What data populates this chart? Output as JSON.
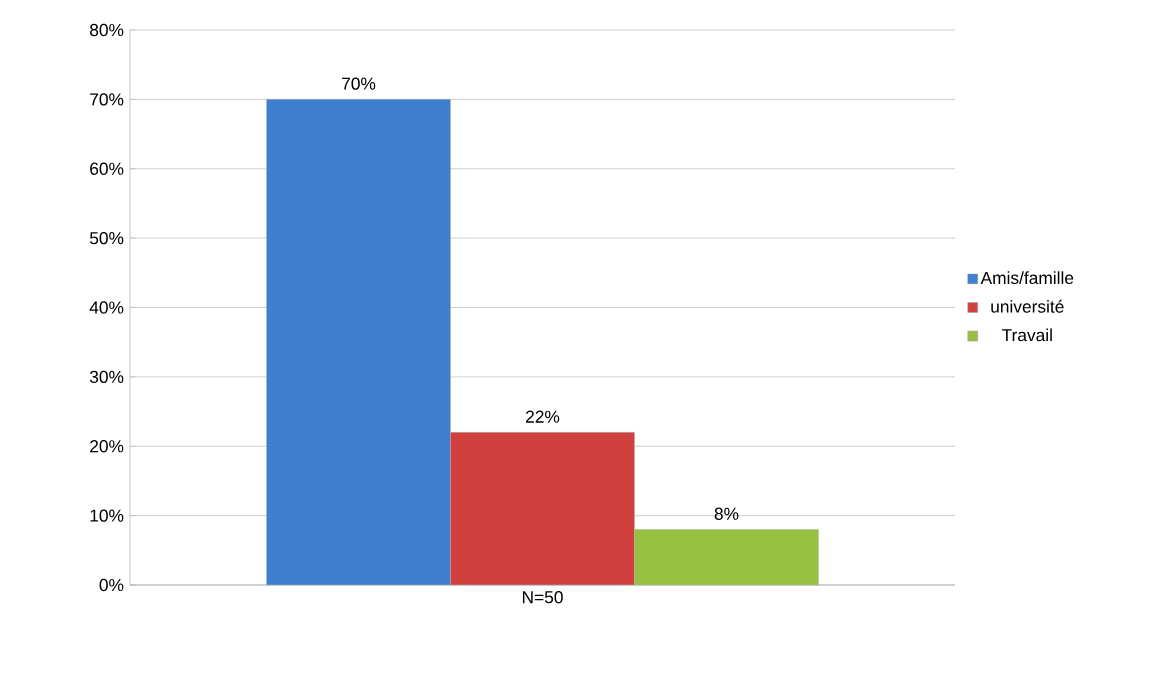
{
  "chart_data": {
    "type": "bar",
    "categories": [
      "N=50"
    ],
    "series": [
      {
        "name": "Amis/famille",
        "color": "#3f7fd0",
        "values": [
          70
        ],
        "value_labels": [
          "70%"
        ]
      },
      {
        "name": "université",
        "color": "#d0403c",
        "values": [
          22
        ],
        "value_labels": [
          "22%"
        ]
      },
      {
        "name": "Travail",
        "color": "#98c040",
        "values": [
          8
        ],
        "value_labels": [
          "8%"
        ]
      }
    ],
    "ylim": [
      0,
      80
    ],
    "yticks": [
      {
        "value": 0,
        "label": "0%"
      },
      {
        "value": 10,
        "label": "10%"
      },
      {
        "value": 20,
        "label": "20%"
      },
      {
        "value": 30,
        "label": "30%"
      },
      {
        "value": 40,
        "label": "40%"
      },
      {
        "value": 50,
        "label": "50%"
      },
      {
        "value": 60,
        "label": "60%"
      },
      {
        "value": 70,
        "label": "70%"
      },
      {
        "value": 80,
        "label": "80%"
      }
    ],
    "grid": "y",
    "legend": "right"
  }
}
